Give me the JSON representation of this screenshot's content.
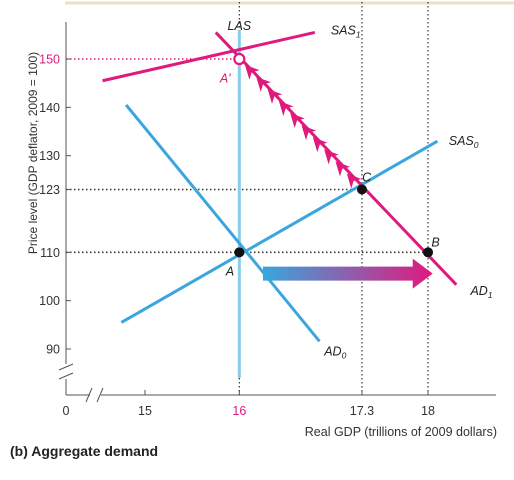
{
  "caption": "(b) Aggregate demand",
  "chart_data": {
    "type": "line",
    "title": "",
    "xlabel": "Real GDP (trillions of 2009 dollars)",
    "ylabel": "Price level (GDP deflator, 2009 = 100)",
    "x_origin_label": "0",
    "x_ticks": [
      {
        "value": 15,
        "label": "15",
        "color": "#333333"
      },
      {
        "value": 16,
        "label": "16",
        "color": "#e0197d"
      },
      {
        "value": 17.3,
        "label": "17.3",
        "color": "#333333"
      },
      {
        "value": 18,
        "label": "18",
        "color": "#333333"
      }
    ],
    "y_ticks": [
      {
        "value": 90,
        "label": "90",
        "color": "#333333"
      },
      {
        "value": 100,
        "label": "100",
        "color": "#333333"
      },
      {
        "value": 110,
        "label": "110",
        "color": "#333333"
      },
      {
        "value": 123,
        "label": "123",
        "color": "#333333"
      },
      {
        "value": 130,
        "label": "130",
        "color": "#333333"
      },
      {
        "value": 140,
        "label": "140",
        "color": "#333333"
      },
      {
        "value": 150,
        "label": "150",
        "color": "#e0197d"
      }
    ],
    "axis_breaks": true,
    "series": [
      {
        "name": "LAS",
        "label_main": "LAS",
        "label_sub": "",
        "color": "#87cdea",
        "width": 3,
        "points": [
          [
            16,
            84
          ],
          [
            16,
            156
          ]
        ],
        "label_at": [
          16,
          156.8
        ]
      },
      {
        "name": "SAS1",
        "label_main": "SAS",
        "label_sub": "1",
        "color": "#e0197d",
        "width": 3,
        "points": [
          [
            14.55,
            145.5
          ],
          [
            16.8,
            155.5
          ]
        ],
        "label_at": [
          16.97,
          155.9
        ]
      },
      {
        "name": "SAS0",
        "label_main": "SAS",
        "label_sub": "0",
        "color": "#3aa6dd",
        "width": 3,
        "points": [
          [
            14.75,
            95.5
          ],
          [
            18.1,
            133
          ]
        ],
        "label_at": [
          18.22,
          133
        ]
      },
      {
        "name": "AD0",
        "label_main": "AD",
        "label_sub": "0",
        "color": "#3aa6dd",
        "width": 3,
        "points": [
          [
            14.8,
            140.5
          ],
          [
            16.85,
            91.6
          ]
        ],
        "label_at": [
          16.9,
          89.5
        ]
      },
      {
        "name": "AD1",
        "label_main": "AD",
        "label_sub": "1",
        "color": "#e0197d",
        "width": 3,
        "points": [
          [
            15.75,
            155.5
          ],
          [
            18.3,
            103.3
          ]
        ],
        "label_at": [
          18.45,
          102
        ]
      }
    ],
    "points": [
      {
        "name": "A",
        "x": 16,
        "y": 110,
        "style": "filled",
        "label_dx": -0.1,
        "label_dy": -4
      },
      {
        "name": "B",
        "x": 18,
        "y": 110,
        "style": "filled",
        "label_dx": 0.08,
        "label_dy": 2
      },
      {
        "name": "C",
        "x": 17.3,
        "y": 123,
        "style": "filled",
        "label_dx": 0.05,
        "label_dy": 2.5
      },
      {
        "name": "A'",
        "x": 16,
        "y": 150,
        "style": "open",
        "label_dx": -0.15,
        "label_dy": -4
      }
    ],
    "dotted_guides": [
      {
        "x": 16,
        "y": 150,
        "color": "#e0197d"
      },
      {
        "x": 17.3,
        "y": 123,
        "color": "#333333"
      },
      {
        "x": 18,
        "y": 110,
        "color": "#333333"
      }
    ],
    "shift_arrow": {
      "from": [
        16.25,
        105.6
      ],
      "to": [
        18.05,
        105.6
      ],
      "colors": [
        "#3aa6dd",
        "#e0197d"
      ]
    },
    "path_arrows": {
      "from": [
        16.05,
        149
      ],
      "to": [
        17.25,
        124
      ],
      "count": 10,
      "color": "#e0197d"
    }
  }
}
